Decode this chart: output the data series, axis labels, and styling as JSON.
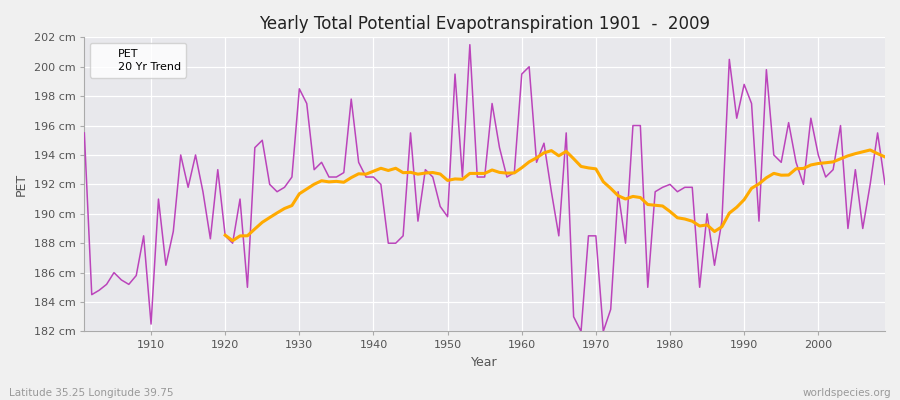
{
  "title": "Yearly Total Potential Evapotranspiration 1901  -  2009",
  "xlabel": "Year",
  "ylabel": "PET",
  "subtitle": "Latitude 35.25 Longitude 39.75",
  "watermark": "worldspecies.org",
  "ylim": [
    182,
    202
  ],
  "xlim": [
    1901,
    2009
  ],
  "ytick_step": 2,
  "line_color": "#bb44bb",
  "trend_color": "#ffaa00",
  "bg_color": "#f0f0f0",
  "plot_bg_color": "#e8e8ec",
  "grid_color": "#ffffff",
  "legend_pet": "PET",
  "legend_trend": "20 Yr Trend",
  "pet_values": [
    195.5,
    184.5,
    184.8,
    185.2,
    186.0,
    185.5,
    185.2,
    185.8,
    188.5,
    182.5,
    191.0,
    186.5,
    188.8,
    194.0,
    191.8,
    194.0,
    191.5,
    188.3,
    193.0,
    188.5,
    188.0,
    191.0,
    185.0,
    194.5,
    195.0,
    192.0,
    191.5,
    191.8,
    192.5,
    198.5,
    197.5,
    193.0,
    193.5,
    192.5,
    192.5,
    192.8,
    197.8,
    193.5,
    192.5,
    192.5,
    192.0,
    188.0,
    188.0,
    188.5,
    195.5,
    189.5,
    193.0,
    192.5,
    190.5,
    189.8,
    199.5,
    192.5,
    201.5,
    192.5,
    192.5,
    197.5,
    194.5,
    192.5,
    192.8,
    199.5,
    200.0,
    193.5,
    194.8,
    191.5,
    188.5,
    195.5,
    183.0,
    182.0,
    188.5,
    188.5,
    182.0,
    183.5,
    191.5,
    188.0,
    196.0,
    196.0,
    185.0,
    191.5,
    191.8,
    192.0,
    191.5,
    191.8,
    191.8,
    185.0,
    190.0,
    186.5,
    189.5,
    200.5,
    196.5,
    198.8,
    197.5,
    189.5,
    199.8,
    194.0,
    193.5,
    196.2,
    193.5,
    192.0,
    196.5,
    194.0,
    192.5,
    193.0,
    196.0,
    189.0,
    193.0,
    189.0,
    192.0,
    195.5,
    192.0
  ]
}
